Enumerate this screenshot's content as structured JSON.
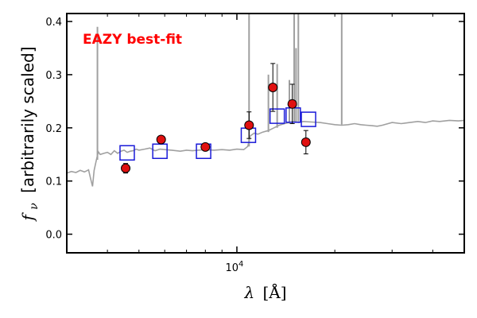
{
  "chart_data": {
    "type": "scatter",
    "annotation": "EAZY best-fit",
    "xlabel_symbol": "λ",
    "xlabel_unit": "[Å]",
    "ylabel_symbol": "f",
    "ylabel_subscript": "ν",
    "ylabel_text": "[arbitrarily scaled]",
    "xscale": "log",
    "xlim": [
      3000,
      50000
    ],
    "ylim": [
      -0.035,
      0.415
    ],
    "yticks": [
      {
        "value": 0.0,
        "label": "0.0"
      },
      {
        "value": 0.1,
        "label": "0.1"
      },
      {
        "value": 0.2,
        "label": "0.2"
      },
      {
        "value": 0.3,
        "label": "0.3"
      },
      {
        "value": 0.4,
        "label": "0.4"
      }
    ],
    "xticks_major": [
      {
        "value": 10000,
        "base": "10",
        "exp": "4"
      }
    ],
    "xticks_minor": [
      4000,
      5000,
      6000,
      7000,
      8000,
      9000,
      20000,
      30000,
      40000
    ],
    "colors": {
      "observed_fill": "#e01010",
      "model_box": "#1a1ad8",
      "template_line": "#a0a0a0",
      "annotation": "#ff0000"
    },
    "series": [
      {
        "kind": "template",
        "points": [
          [
            3000,
            0.115
          ],
          [
            3100,
            0.118
          ],
          [
            3200,
            0.116
          ],
          [
            3300,
            0.12
          ],
          [
            3400,
            0.117
          ],
          [
            3500,
            0.121
          ],
          [
            3550,
            0.105
          ],
          [
            3600,
            0.09
          ],
          [
            3640,
            0.12
          ],
          [
            3700,
            0.14
          ],
          [
            3750,
            0.155
          ],
          [
            3800,
            0.15
          ],
          [
            3900,
            0.152
          ],
          [
            4000,
            0.154
          ],
          [
            4100,
            0.15
          ],
          [
            4200,
            0.157
          ],
          [
            4300,
            0.152
          ],
          [
            4400,
            0.156
          ],
          [
            4500,
            0.158
          ],
          [
            4600,
            0.154
          ],
          [
            4700,
            0.156
          ],
          [
            4800,
            0.157
          ],
          [
            4900,
            0.16
          ],
          [
            5000,
            0.158
          ],
          [
            5200,
            0.16
          ],
          [
            5400,
            0.162
          ],
          [
            5600,
            0.157
          ],
          [
            5800,
            0.16
          ],
          [
            6000,
            0.159
          ],
          [
            6300,
            0.158
          ],
          [
            6500,
            0.157
          ],
          [
            6700,
            0.156
          ],
          [
            7000,
            0.158
          ],
          [
            7300,
            0.157
          ],
          [
            7600,
            0.158
          ],
          [
            8000,
            0.159
          ],
          [
            8500,
            0.158
          ],
          [
            9000,
            0.159
          ],
          [
            9500,
            0.158
          ],
          [
            10000,
            0.16
          ],
          [
            10500,
            0.159
          ],
          [
            10800,
            0.165
          ],
          [
            11000,
            0.185
          ],
          [
            11300,
            0.19
          ],
          [
            11600,
            0.188
          ],
          [
            12000,
            0.192
          ],
          [
            12500,
            0.195
          ],
          [
            13000,
            0.2
          ],
          [
            13500,
            0.205
          ],
          [
            14000,
            0.208
          ],
          [
            14500,
            0.21
          ],
          [
            15000,
            0.212
          ],
          [
            15500,
            0.21
          ],
          [
            16000,
            0.212
          ],
          [
            17000,
            0.211
          ],
          [
            18000,
            0.21
          ],
          [
            19000,
            0.208
          ],
          [
            20000,
            0.206
          ],
          [
            21000,
            0.205
          ],
          [
            22000,
            0.206
          ],
          [
            23000,
            0.208
          ],
          [
            24000,
            0.206
          ],
          [
            25000,
            0.205
          ],
          [
            26000,
            0.204
          ],
          [
            27000,
            0.203
          ],
          [
            28000,
            0.205
          ],
          [
            30000,
            0.21
          ],
          [
            32000,
            0.208
          ],
          [
            34000,
            0.21
          ],
          [
            36000,
            0.212
          ],
          [
            38000,
            0.21
          ],
          [
            40000,
            0.213
          ],
          [
            42000,
            0.212
          ],
          [
            45000,
            0.214
          ],
          [
            48000,
            0.213
          ],
          [
            50000,
            0.214
          ]
        ],
        "emission_lines": [
          {
            "x": 3727,
            "top": 0.39
          },
          {
            "x": 10900,
            "top": 0.415
          },
          {
            "x": 12500,
            "top": 0.3
          },
          {
            "x": 13300,
            "top": 0.32
          },
          {
            "x": 14500,
            "top": 0.29
          },
          {
            "x": 15000,
            "top": 0.415
          },
          {
            "x": 15200,
            "top": 0.35
          },
          {
            "x": 15450,
            "top": 0.415
          },
          {
            "x": 21000,
            "top": 0.415
          }
        ]
      },
      {
        "kind": "model_photometry",
        "points": [
          [
            4600,
            0.153
          ],
          [
            5800,
            0.156
          ],
          [
            7900,
            0.156
          ],
          [
            10850,
            0.186
          ],
          [
            13300,
            0.222
          ],
          [
            14900,
            0.224
          ],
          [
            16600,
            0.216
          ]
        ]
      },
      {
        "kind": "observed_photometry",
        "points": [
          {
            "x": 4550,
            "y": 0.124,
            "err": 0.009
          },
          {
            "x": 5850,
            "y": 0.178,
            "err": 0.005
          },
          {
            "x": 8000,
            "y": 0.164,
            "err": 0.006
          },
          {
            "x": 10900,
            "y": 0.205,
            "err": 0.025
          },
          {
            "x": 12900,
            "y": 0.276,
            "err": 0.045
          },
          {
            "x": 14800,
            "y": 0.245,
            "err": 0.037
          },
          {
            "x": 16300,
            "y": 0.173,
            "err": 0.022
          }
        ]
      }
    ]
  }
}
